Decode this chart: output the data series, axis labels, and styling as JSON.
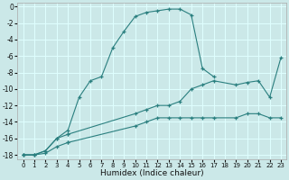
{
  "xlabel": "Humidex (Indice chaleur)",
  "xlim": [
    -0.5,
    23.5
  ],
  "ylim": [
    -18.5,
    0.5
  ],
  "xtick_vals": [
    0,
    1,
    2,
    3,
    4,
    5,
    6,
    7,
    8,
    9,
    10,
    11,
    12,
    13,
    14,
    15,
    16,
    17,
    18,
    19,
    20,
    21,
    22,
    23
  ],
  "ytick_vals": [
    0,
    -2,
    -4,
    -6,
    -8,
    -10,
    -12,
    -14,
    -16,
    -18
  ],
  "bg_color": "#cbe8e8",
  "grid_color": "#dfffff",
  "line_color": "#2a7f7f",
  "line1_x": [
    0,
    1,
    2,
    3,
    4,
    5,
    6,
    7,
    8,
    9,
    10,
    11,
    12,
    13,
    14,
    15,
    16,
    17
  ],
  "line1_y": [
    -18,
    -18,
    -17.5,
    -16,
    -15,
    -11,
    -9,
    -8.5,
    -5,
    -3,
    -1.2,
    -0.7,
    -0.5,
    -0.3,
    -0.3,
    -1,
    -7.5,
    -8.5
  ],
  "line2_x": [
    0,
    1,
    2,
    3,
    4,
    10,
    11,
    12,
    13,
    14,
    15,
    16,
    17,
    19,
    20,
    21,
    22,
    23
  ],
  "line2_y": [
    -18,
    -18,
    -17.5,
    -16,
    -15.5,
    -13,
    -12.5,
    -12,
    -12,
    -11.5,
    -10,
    -9.5,
    -9,
    -9.5,
    -9.2,
    -9,
    -11,
    -6.2
  ],
  "line3_x": [
    0,
    1,
    2,
    3,
    4,
    10,
    11,
    12,
    13,
    14,
    15,
    16,
    17,
    19,
    20,
    21,
    22,
    23
  ],
  "line3_y": [
    -18,
    -18,
    -17.8,
    -17,
    -16.5,
    -14.5,
    -14,
    -13.5,
    -13.5,
    -13.5,
    -13.5,
    -13.5,
    -13.5,
    -13.5,
    -13,
    -13,
    -13.5,
    -13.5
  ]
}
